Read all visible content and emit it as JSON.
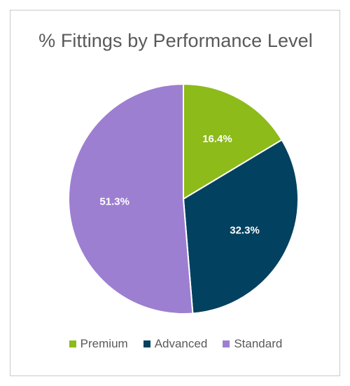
{
  "chart_data": {
    "type": "pie",
    "title": "% Fittings by Performance Level",
    "categories": [
      "Premium",
      "Advanced",
      "Standard"
    ],
    "values": [
      16.4,
      32.3,
      51.3
    ],
    "data_labels": [
      "16.4%",
      "32.3%",
      "51.3%"
    ],
    "colors": [
      "#8cbb1a",
      "#02415f",
      "#9d7fd1"
    ],
    "start_angle_deg": 0,
    "direction": "clockwise",
    "legend_position": "bottom"
  }
}
